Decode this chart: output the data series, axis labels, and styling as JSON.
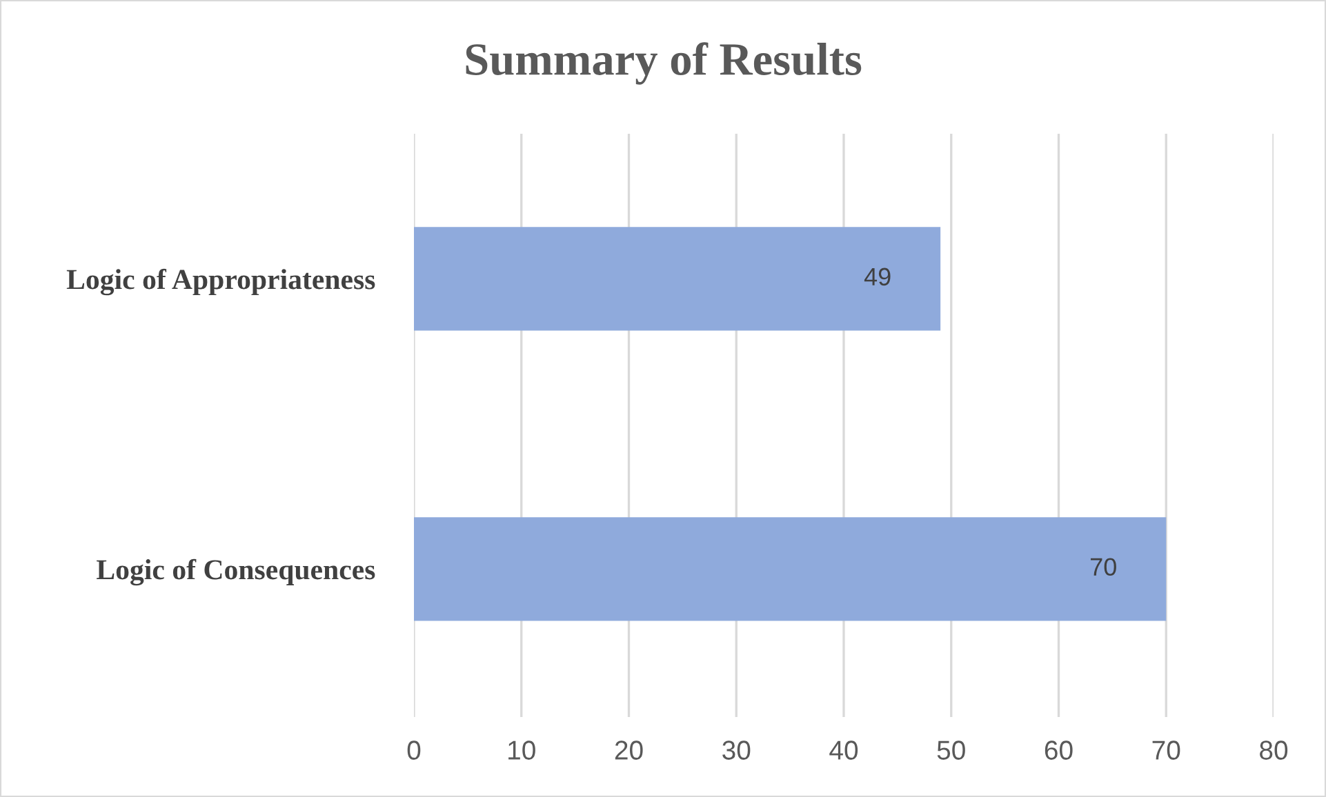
{
  "chart_data": {
    "type": "bar",
    "orientation": "horizontal",
    "title": "Summary of Results",
    "categories": [
      "Logic of Appropriateness",
      "Logic of Consequences"
    ],
    "values": [
      49,
      70
    ],
    "color": "#8faadc",
    "xlim": [
      0,
      80
    ],
    "xticks": [
      0,
      10,
      20,
      30,
      40,
      50,
      60,
      70,
      80
    ],
    "grid": "x",
    "data_labels": true
  }
}
